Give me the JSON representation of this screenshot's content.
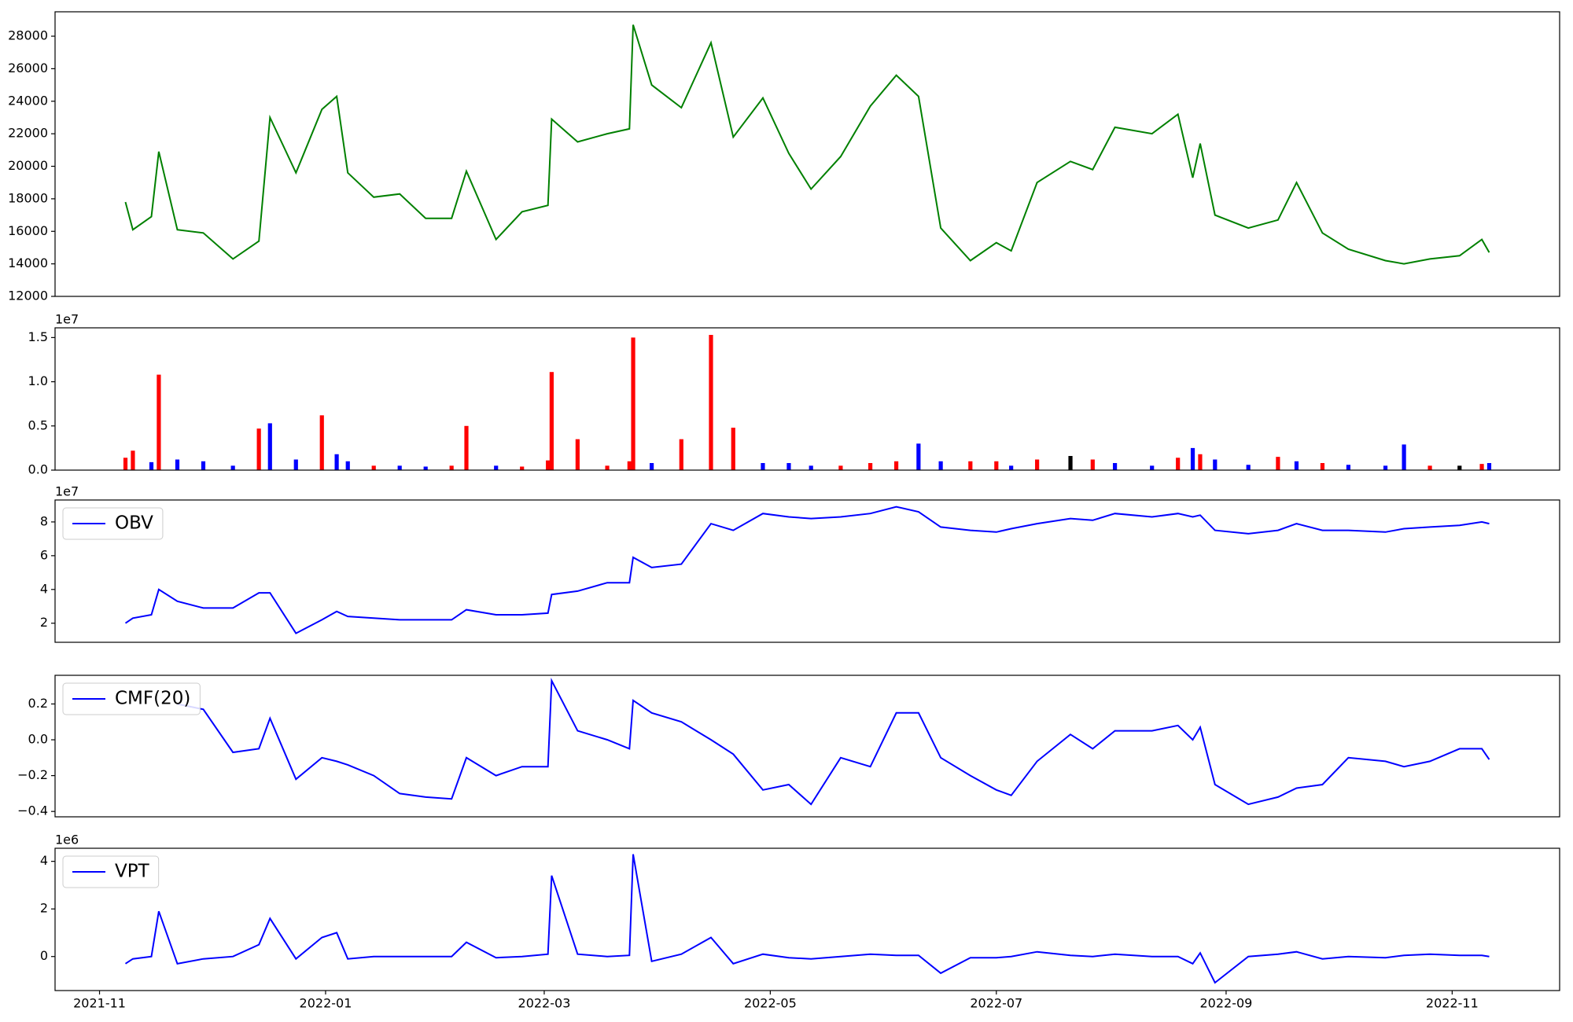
{
  "chart_data": [
    {
      "type": "line",
      "color": "#008000",
      "x": [
        "2021-11-08",
        "2021-11-10",
        "2021-11-15",
        "2021-11-17",
        "2021-11-22",
        "2021-11-29",
        "2021-12-07",
        "2021-12-14",
        "2021-12-17",
        "2021-12-24",
        "2021-12-31",
        "2022-01-04",
        "2022-01-07",
        "2022-01-14",
        "2022-01-21",
        "2022-01-28",
        "2022-02-04",
        "2022-02-08",
        "2022-02-16",
        "2022-02-23",
        "2022-03-02",
        "2022-03-03",
        "2022-03-10",
        "2022-03-18",
        "2022-03-24",
        "2022-03-25",
        "2022-03-30",
        "2022-04-07",
        "2022-04-15",
        "2022-04-21",
        "2022-04-29",
        "2022-05-06",
        "2022-05-12",
        "2022-05-20",
        "2022-05-28",
        "2022-06-04",
        "2022-06-10",
        "2022-06-16",
        "2022-06-24",
        "2022-07-01",
        "2022-07-05",
        "2022-07-12",
        "2022-07-21",
        "2022-07-27",
        "2022-08-02",
        "2022-08-12",
        "2022-08-19",
        "2022-08-23",
        "2022-08-25",
        "2022-08-29",
        "2022-09-07",
        "2022-09-15",
        "2022-09-20",
        "2022-09-27",
        "2022-10-04",
        "2022-10-14",
        "2022-10-19",
        "2022-10-26",
        "2022-11-03",
        "2022-11-09",
        "2022-11-11"
      ],
      "values": [
        17800,
        16100,
        16900,
        20900,
        16100,
        15900,
        14300,
        15400,
        23000,
        19600,
        23500,
        24300,
        19600,
        18100,
        18300,
        16800,
        16800,
        19700,
        15500,
        17200,
        17600,
        22900,
        21500,
        22000,
        22300,
        28700,
        25000,
        23600,
        27600,
        21800,
        24200,
        20800,
        18600,
        20600,
        23700,
        25600,
        24300,
        16200,
        14200,
        15300,
        14800,
        19000,
        20300,
        19800,
        22400,
        22000,
        23200,
        19300,
        21400,
        17000,
        16200,
        16700,
        19000,
        15900,
        14900,
        14200,
        14000,
        14300,
        14500,
        15500,
        14700
      ],
      "xlim": [
        "2021-10-20",
        "2022-11-30"
      ],
      "ylim": [
        12000,
        29500
      ],
      "yticks": [
        12000,
        14000,
        16000,
        18000,
        20000,
        22000,
        24000,
        26000,
        28000
      ]
    },
    {
      "type": "bar",
      "offset_label": "1e7",
      "x": [
        "2021-11-08",
        "2021-11-10",
        "2021-11-15",
        "2021-11-17",
        "2021-11-22",
        "2021-11-29",
        "2021-12-07",
        "2021-12-14",
        "2021-12-17",
        "2021-12-24",
        "2021-12-31",
        "2022-01-04",
        "2022-01-07",
        "2022-01-14",
        "2022-01-21",
        "2022-01-28",
        "2022-02-04",
        "2022-02-08",
        "2022-02-16",
        "2022-02-23",
        "2022-03-02",
        "2022-03-03",
        "2022-03-10",
        "2022-03-18",
        "2022-03-24",
        "2022-03-25",
        "2022-03-30",
        "2022-04-07",
        "2022-04-15",
        "2022-04-21",
        "2022-04-29",
        "2022-05-06",
        "2022-05-12",
        "2022-05-20",
        "2022-05-28",
        "2022-06-04",
        "2022-06-10",
        "2022-06-16",
        "2022-06-24",
        "2022-07-01",
        "2022-07-05",
        "2022-07-12",
        "2022-07-21",
        "2022-07-27",
        "2022-08-02",
        "2022-08-12",
        "2022-08-19",
        "2022-08-23",
        "2022-08-25",
        "2022-08-29",
        "2022-09-07",
        "2022-09-15",
        "2022-09-20",
        "2022-09-27",
        "2022-10-04",
        "2022-10-14",
        "2022-10-19",
        "2022-10-26",
        "2022-11-03",
        "2022-11-09",
        "2022-11-11"
      ],
      "values": [
        0.14,
        0.22,
        0.09,
        1.08,
        0.12,
        0.1,
        0.05,
        0.47,
        0.53,
        0.12,
        0.62,
        0.18,
        0.1,
        0.05,
        0.05,
        0.04,
        0.05,
        0.5,
        0.05,
        0.04,
        0.11,
        1.11,
        0.35,
        0.05,
        0.1,
        1.5,
        0.08,
        0.35,
        1.53,
        0.48,
        0.08,
        0.08,
        0.05,
        0.05,
        0.08,
        0.1,
        0.3,
        0.1,
        0.1,
        0.1,
        0.05,
        0.12,
        0.16,
        0.12,
        0.08,
        0.05,
        0.14,
        0.25,
        0.18,
        0.12,
        0.06,
        0.15,
        0.1,
        0.08,
        0.06,
        0.05,
        0.29,
        0.05,
        0.05,
        0.07,
        0.08
      ],
      "colors": [
        "#ff0000",
        "#ff0000",
        "#0000ff",
        "#ff0000",
        "#0000ff",
        "#0000ff",
        "#0000ff",
        "#ff0000",
        "#0000ff",
        "#0000ff",
        "#ff0000",
        "#0000ff",
        "#0000ff",
        "#ff0000",
        "#0000ff",
        "#0000ff",
        "#ff0000",
        "#ff0000",
        "#0000ff",
        "#ff0000",
        "#ff0000",
        "#ff0000",
        "#ff0000",
        "#ff0000",
        "#ff0000",
        "#ff0000",
        "#0000ff",
        "#ff0000",
        "#ff0000",
        "#ff0000",
        "#0000ff",
        "#0000ff",
        "#0000ff",
        "#ff0000",
        "#ff0000",
        "#ff0000",
        "#0000ff",
        "#0000ff",
        "#ff0000",
        "#ff0000",
        "#0000ff",
        "#ff0000",
        "#000000",
        "#ff0000",
        "#0000ff",
        "#0000ff",
        "#ff0000",
        "#0000ff",
        "#ff0000",
        "#0000ff",
        "#0000ff",
        "#ff0000",
        "#0000ff",
        "#ff0000",
        "#0000ff",
        "#0000ff",
        "#0000ff",
        "#ff0000",
        "#000000",
        "#ff0000",
        "#0000ff"
      ],
      "xlim": [
        "2021-10-20",
        "2022-11-30"
      ],
      "ylim": [
        0,
        1.61
      ],
      "yticks": [
        {
          "value": 0,
          "label": "0.0"
        },
        0.5,
        {
          "value": 1,
          "label": "1.0"
        },
        1.5
      ]
    },
    {
      "type": "line",
      "offset_label": "1e7",
      "legend": "upper left",
      "x": [
        "2021-11-08",
        "2021-11-10",
        "2021-11-15",
        "2021-11-17",
        "2021-11-22",
        "2021-11-29",
        "2021-12-07",
        "2021-12-14",
        "2021-12-17",
        "2021-12-24",
        "2021-12-31",
        "2022-01-04",
        "2022-01-07",
        "2022-01-14",
        "2022-01-21",
        "2022-01-28",
        "2022-02-04",
        "2022-02-08",
        "2022-02-16",
        "2022-02-23",
        "2022-03-02",
        "2022-03-03",
        "2022-03-10",
        "2022-03-18",
        "2022-03-24",
        "2022-03-25",
        "2022-03-30",
        "2022-04-07",
        "2022-04-15",
        "2022-04-21",
        "2022-04-29",
        "2022-05-06",
        "2022-05-12",
        "2022-05-20",
        "2022-05-28",
        "2022-06-04",
        "2022-06-10",
        "2022-06-16",
        "2022-06-24",
        "2022-07-01",
        "2022-07-05",
        "2022-07-12",
        "2022-07-21",
        "2022-07-27",
        "2022-08-02",
        "2022-08-12",
        "2022-08-19",
        "2022-08-23",
        "2022-08-25",
        "2022-08-29",
        "2022-09-07",
        "2022-09-15",
        "2022-09-20",
        "2022-09-27",
        "2022-10-04",
        "2022-10-14",
        "2022-10-19",
        "2022-10-26",
        "2022-11-03",
        "2022-11-09",
        "2022-11-11"
      ],
      "series": [
        {
          "name": "OBV",
          "color": "#0000ff",
          "values": [
            2.0,
            2.3,
            2.5,
            4.0,
            3.3,
            2.9,
            2.9,
            3.8,
            3.8,
            1.4,
            2.2,
            2.7,
            2.4,
            2.3,
            2.2,
            2.2,
            2.2,
            2.8,
            2.5,
            2.5,
            2.6,
            3.7,
            3.9,
            4.4,
            4.4,
            5.9,
            5.3,
            5.5,
            7.9,
            7.5,
            8.5,
            8.3,
            8.2,
            8.3,
            8.5,
            8.9,
            8.6,
            7.7,
            7.5,
            7.4,
            7.6,
            7.9,
            8.2,
            8.1,
            8.5,
            8.3,
            8.5,
            8.3,
            8.4,
            7.5,
            7.3,
            7.5,
            7.9,
            7.5,
            7.5,
            7.4,
            7.6,
            7.7,
            7.8,
            8.0,
            7.9
          ]
        }
      ],
      "xlim": [
        "2021-10-20",
        "2022-11-30"
      ],
      "ylim": [
        0.87,
        9.3
      ],
      "yticks": [
        2,
        4,
        6,
        8
      ]
    },
    {
      "type": "line",
      "legend": "upper left",
      "x": [
        "2021-11-08",
        "2021-11-10",
        "2021-11-15",
        "2021-11-17",
        "2021-11-22",
        "2021-11-29",
        "2021-12-07",
        "2021-12-14",
        "2021-12-17",
        "2021-12-24",
        "2021-12-31",
        "2022-01-04",
        "2022-01-07",
        "2022-01-14",
        "2022-01-21",
        "2022-01-28",
        "2022-02-04",
        "2022-02-08",
        "2022-02-16",
        "2022-02-23",
        "2022-03-02",
        "2022-03-03",
        "2022-03-10",
        "2022-03-18",
        "2022-03-24",
        "2022-03-25",
        "2022-03-30",
        "2022-04-07",
        "2022-04-15",
        "2022-04-21",
        "2022-04-29",
        "2022-05-06",
        "2022-05-12",
        "2022-05-20",
        "2022-05-28",
        "2022-06-04",
        "2022-06-10",
        "2022-06-16",
        "2022-06-24",
        "2022-07-01",
        "2022-07-05",
        "2022-07-12",
        "2022-07-21",
        "2022-07-27",
        "2022-08-02",
        "2022-08-12",
        "2022-08-19",
        "2022-08-23",
        "2022-08-25",
        "2022-08-29",
        "2022-09-07",
        "2022-09-15",
        "2022-09-20",
        "2022-09-27",
        "2022-10-04",
        "2022-10-14",
        "2022-10-19",
        "2022-10-26",
        "2022-11-03",
        "2022-11-09",
        "2022-11-11"
      ],
      "series": [
        {
          "name": "CMF(20)",
          "color": "#0000ff",
          "values": [
            null,
            null,
            null,
            null,
            0.2,
            0.17,
            -0.07,
            -0.05,
            0.12,
            -0.22,
            -0.1,
            -0.12,
            -0.14,
            -0.2,
            -0.3,
            -0.32,
            -0.33,
            -0.1,
            -0.2,
            -0.15,
            -0.15,
            0.33,
            0.05,
            0.0,
            -0.05,
            0.22,
            0.15,
            0.1,
            0.0,
            -0.08,
            -0.28,
            -0.25,
            -0.36,
            -0.1,
            -0.15,
            0.15,
            0.15,
            -0.1,
            -0.2,
            -0.28,
            -0.31,
            -0.12,
            0.03,
            -0.05,
            0.05,
            0.05,
            0.08,
            0.0,
            0.07,
            -0.25,
            -0.36,
            -0.32,
            -0.27,
            -0.25,
            -0.1,
            -0.12,
            -0.15,
            -0.12,
            -0.05,
            -0.05,
            -0.11
          ]
        }
      ],
      "xlim": [
        "2021-10-20",
        "2022-11-30"
      ],
      "ylim": [
        -0.43,
        0.36
      ],
      "yticks": [
        {
          "value": -0.4,
          "label": "−0.4"
        },
        {
          "value": -0.2,
          "label": "−0.2"
        },
        {
          "value": 0,
          "label": "0.0"
        },
        0.2
      ]
    },
    {
      "type": "line",
      "offset_label": "1e6",
      "legend": "upper left",
      "x": [
        "2021-11-08",
        "2021-11-10",
        "2021-11-15",
        "2021-11-17",
        "2021-11-22",
        "2021-11-29",
        "2021-12-07",
        "2021-12-14",
        "2021-12-17",
        "2021-12-24",
        "2021-12-31",
        "2022-01-04",
        "2022-01-07",
        "2022-01-14",
        "2022-01-21",
        "2022-01-28",
        "2022-02-04",
        "2022-02-08",
        "2022-02-16",
        "2022-02-23",
        "2022-03-02",
        "2022-03-03",
        "2022-03-10",
        "2022-03-18",
        "2022-03-24",
        "2022-03-25",
        "2022-03-30",
        "2022-04-07",
        "2022-04-15",
        "2022-04-21",
        "2022-04-29",
        "2022-05-06",
        "2022-05-12",
        "2022-05-20",
        "2022-05-28",
        "2022-06-04",
        "2022-06-10",
        "2022-06-16",
        "2022-06-24",
        "2022-07-01",
        "2022-07-05",
        "2022-07-12",
        "2022-07-21",
        "2022-07-27",
        "2022-08-02",
        "2022-08-12",
        "2022-08-19",
        "2022-08-23",
        "2022-08-25",
        "2022-08-29",
        "2022-09-07",
        "2022-09-15",
        "2022-09-20",
        "2022-09-27",
        "2022-10-04",
        "2022-10-14",
        "2022-10-19",
        "2022-10-26",
        "2022-11-03",
        "2022-11-09",
        "2022-11-11"
      ],
      "series": [
        {
          "name": "VPT",
          "color": "#0000ff",
          "values": [
            -0.3,
            -0.1,
            0.0,
            1.9,
            -0.3,
            -0.1,
            0.0,
            0.5,
            1.6,
            -0.1,
            0.8,
            1.0,
            -0.1,
            0.0,
            0.0,
            0.0,
            0.0,
            0.6,
            -0.05,
            0.0,
            0.1,
            3.4,
            0.1,
            0.0,
            0.05,
            4.3,
            -0.2,
            0.1,
            0.8,
            -0.3,
            0.1,
            -0.05,
            -0.1,
            0.0,
            0.1,
            0.05,
            0.05,
            -0.7,
            -0.05,
            -0.05,
            0.0,
            0.2,
            0.05,
            0.0,
            0.1,
            0.0,
            0.0,
            -0.3,
            0.15,
            -1.1,
            0.0,
            0.1,
            0.2,
            -0.1,
            0.0,
            -0.05,
            0.05,
            0.1,
            0.05,
            0.05,
            0.0
          ]
        }
      ],
      "xlim": [
        "2021-10-20",
        "2022-11-30"
      ],
      "ylim": [
        -1.43,
        4.55
      ],
      "yticks": [
        0,
        2,
        4
      ],
      "xticks": [
        {
          "value": "2021-11-01",
          "label": "2021-11"
        },
        {
          "value": "2022-01-01",
          "label": "2022-01"
        },
        {
          "value": "2022-03-01",
          "label": "2022-03"
        },
        {
          "value": "2022-05-01",
          "label": "2022-05"
        },
        {
          "value": "2022-07-01",
          "label": "2022-07"
        },
        {
          "value": "2022-09-01",
          "label": "2022-09"
        },
        {
          "value": "2022-11-01",
          "label": "2022-11"
        }
      ]
    }
  ]
}
